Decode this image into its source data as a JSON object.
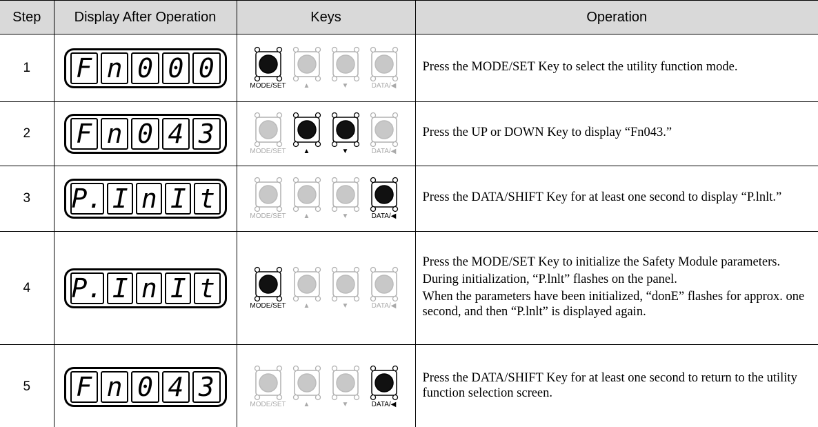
{
  "table": {
    "header": [
      "Step",
      "Display After Operation",
      "Keys",
      "Operation"
    ],
    "rows": [
      {
        "step": "1",
        "display": [
          "F",
          "n",
          "0",
          "0",
          "0"
        ],
        "keys": [
          {
            "label": "MODE/SET",
            "pressed": true
          },
          {
            "label": "▲",
            "pressed": false
          },
          {
            "label": "▼",
            "pressed": false
          },
          {
            "label": "DATA/◀",
            "pressed": false
          }
        ],
        "operation": [
          "Press the MODE/SET Key to select the utility function mode."
        ]
      },
      {
        "step": "2",
        "display": [
          "F",
          "n",
          "0",
          "4",
          "3"
        ],
        "keys": [
          {
            "label": "MODE/SET",
            "pressed": false
          },
          {
            "label": "▲",
            "pressed": true
          },
          {
            "label": "▼",
            "pressed": true
          },
          {
            "label": "DATA/◀",
            "pressed": false
          }
        ],
        "operation": [
          "Press the UP or DOWN Key to display “Fn043.”"
        ]
      },
      {
        "step": "3",
        "display": [
          "P.",
          "I",
          "n",
          "I",
          "t"
        ],
        "keys": [
          {
            "label": "MODE/SET",
            "pressed": false
          },
          {
            "label": "▲",
            "pressed": false
          },
          {
            "label": "▼",
            "pressed": false
          },
          {
            "label": "DATA/◀",
            "pressed": true
          }
        ],
        "operation": [
          "Press the DATA/SHIFT Key for at least one second to display “P.lnlt.”"
        ]
      },
      {
        "step": "4",
        "display": [
          "P.",
          "I",
          "n",
          "I",
          "t"
        ],
        "keys": [
          {
            "label": "MODE/SET",
            "pressed": true
          },
          {
            "label": "▲",
            "pressed": false
          },
          {
            "label": "▼",
            "pressed": false
          },
          {
            "label": "DATA/◀",
            "pressed": false
          }
        ],
        "operation": [
          "Press the MODE/SET Key to initialize the Safety Module parameters.",
          "During initialization, “P.lnlt” flashes on the panel.",
          "When the parameters have been initialized, “donE” flashes for approx. one second, and then “P.lnlt” is displayed again."
        ]
      },
      {
        "step": "5",
        "display": [
          "F",
          "n",
          "0",
          "4",
          "3"
        ],
        "keys": [
          {
            "label": "MODE/SET",
            "pressed": false
          },
          {
            "label": "▲",
            "pressed": false
          },
          {
            "label": "▼",
            "pressed": false
          },
          {
            "label": "DATA/◀",
            "pressed": true
          }
        ],
        "operation": [
          "Press the DATA/SHIFT Key for at least one second to return to the utility function selection screen."
        ]
      }
    ]
  }
}
